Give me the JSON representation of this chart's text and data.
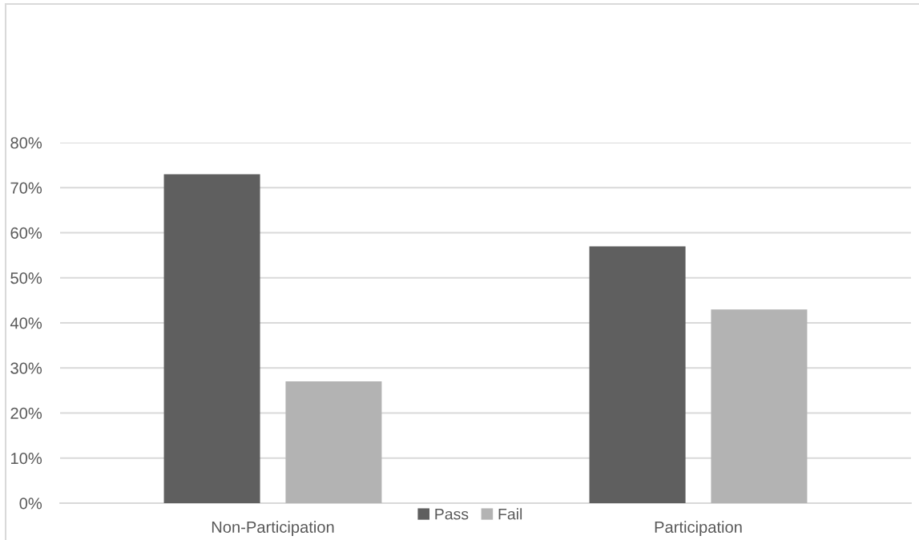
{
  "chart_data": {
    "type": "bar",
    "categories": [
      "Non-Participation",
      "Participation"
    ],
    "series": [
      {
        "name": "Pass",
        "color": "#5f5f5f",
        "values": [
          73,
          57
        ]
      },
      {
        "name": "Fail",
        "color": "#b3b3b3",
        "values": [
          27,
          43
        ]
      }
    ],
    "ylim": [
      0,
      80
    ],
    "yticks": [
      {
        "value": 0,
        "label": "0%"
      },
      {
        "value": 10,
        "label": "10%"
      },
      {
        "value": 20,
        "label": "20%"
      },
      {
        "value": 30,
        "label": "30%"
      },
      {
        "value": 40,
        "label": "40%"
      },
      {
        "value": 50,
        "label": "50%"
      },
      {
        "value": 60,
        "label": "60%"
      },
      {
        "value": 70,
        "label": "70%"
      },
      {
        "value": 80,
        "label": "80%"
      }
    ],
    "grid": "y",
    "legend": "bottom"
  }
}
